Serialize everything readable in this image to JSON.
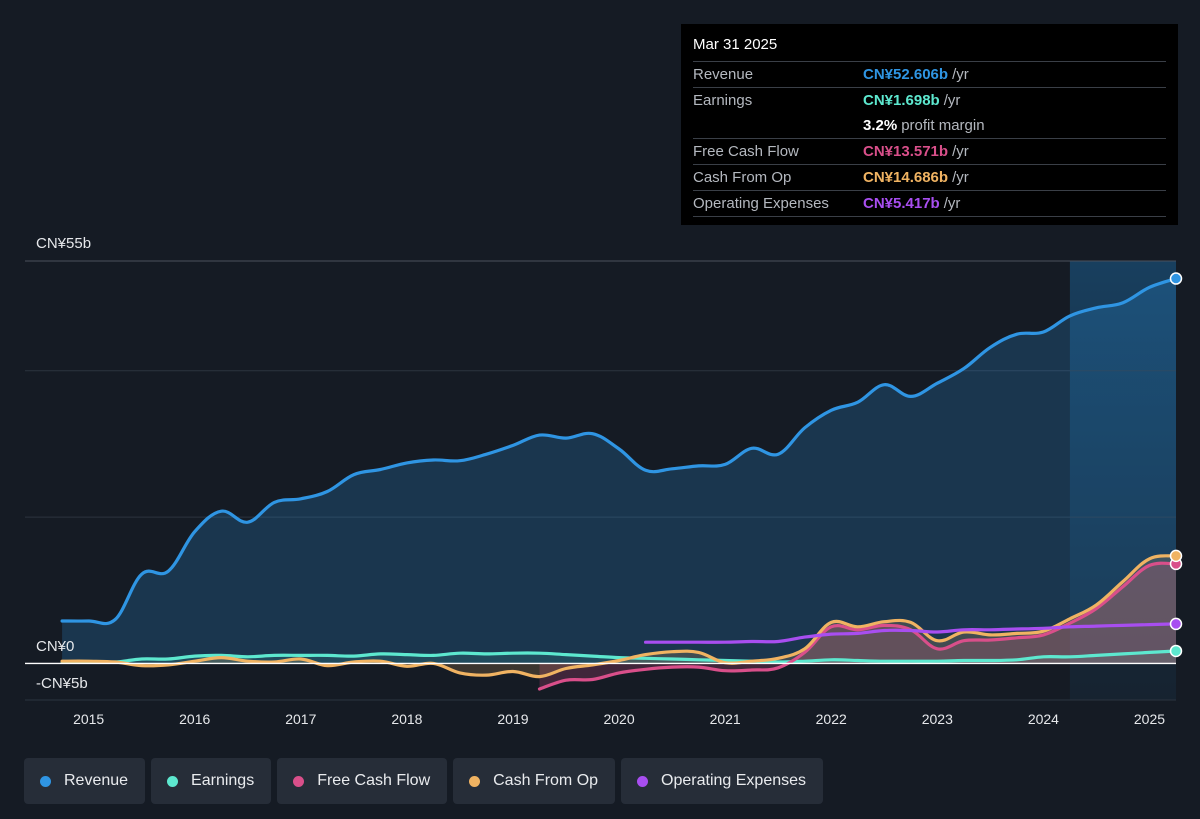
{
  "tooltip": {
    "date": "Mar 31 2025",
    "rows": [
      {
        "label": "Revenue",
        "value": "CN¥52.606b",
        "unit": "/yr",
        "color": "#2f95e3"
      },
      {
        "label": "Earnings",
        "value": "CN¥1.698b",
        "unit": "/yr",
        "color": "#5de8cf"
      },
      {
        "label": "",
        "value": "3.2%",
        "unit": "profit margin",
        "color": "#ffffff"
      },
      {
        "label": "Free Cash Flow",
        "value": "CN¥13.571b",
        "unit": "/yr",
        "color": "#d94f8a"
      },
      {
        "label": "Cash From Op",
        "value": "CN¥14.686b",
        "unit": "/yr",
        "color": "#f0b362"
      },
      {
        "label": "Operating Expenses",
        "value": "CN¥5.417b",
        "unit": "/yr",
        "color": "#a84ef0"
      }
    ]
  },
  "legend": [
    {
      "label": "Revenue",
      "color": "#2f95e3"
    },
    {
      "label": "Earnings",
      "color": "#5de8cf"
    },
    {
      "label": "Free Cash Flow",
      "color": "#d94f8a"
    },
    {
      "label": "Cash From Op",
      "color": "#f0b362"
    },
    {
      "label": "Operating Expenses",
      "color": "#a84ef0"
    }
  ],
  "chart_data": {
    "type": "line",
    "ylim": [
      -5,
      55
    ],
    "xlim": [
      2014.4,
      2025.25
    ],
    "y_tick_labels": [
      "CN¥55b",
      "CN¥0",
      "-CN¥5b"
    ],
    "x_tick_labels": [
      "2015",
      "2016",
      "2017",
      "2018",
      "2019",
      "2020",
      "2021",
      "2022",
      "2023",
      "2024",
      "2025"
    ],
    "forecast_start": 2024.25,
    "series": [
      {
        "name": "Revenue",
        "color": "#2f95e3",
        "area": true,
        "points": [
          [
            2014.75,
            5.8
          ],
          [
            2015.0,
            5.8
          ],
          [
            2015.25,
            6.0
          ],
          [
            2015.5,
            12.2
          ],
          [
            2015.75,
            12.6
          ],
          [
            2016.0,
            18.0
          ],
          [
            2016.25,
            20.8
          ],
          [
            2016.5,
            19.3
          ],
          [
            2016.75,
            22.0
          ],
          [
            2017.0,
            22.5
          ],
          [
            2017.25,
            23.5
          ],
          [
            2017.5,
            25.8
          ],
          [
            2017.75,
            26.5
          ],
          [
            2018.0,
            27.4
          ],
          [
            2018.25,
            27.8
          ],
          [
            2018.5,
            27.7
          ],
          [
            2018.75,
            28.6
          ],
          [
            2019.0,
            29.8
          ],
          [
            2019.25,
            31.2
          ],
          [
            2019.5,
            30.8
          ],
          [
            2019.75,
            31.4
          ],
          [
            2020.0,
            29.3
          ],
          [
            2020.25,
            26.4
          ],
          [
            2020.5,
            26.6
          ],
          [
            2020.75,
            27.0
          ],
          [
            2021.0,
            27.2
          ],
          [
            2021.25,
            29.4
          ],
          [
            2021.5,
            28.6
          ],
          [
            2021.75,
            32.2
          ],
          [
            2022.0,
            34.6
          ],
          [
            2022.25,
            35.7
          ],
          [
            2022.5,
            38.1
          ],
          [
            2022.75,
            36.5
          ],
          [
            2023.0,
            38.3
          ],
          [
            2023.25,
            40.3
          ],
          [
            2023.5,
            43.2
          ],
          [
            2023.75,
            45.0
          ],
          [
            2024.0,
            45.3
          ],
          [
            2024.25,
            47.5
          ],
          [
            2024.5,
            48.6
          ],
          [
            2024.75,
            49.3
          ],
          [
            2025.0,
            51.4
          ],
          [
            2025.25,
            52.6
          ]
        ]
      },
      {
        "name": "Earnings",
        "color": "#5de8cf",
        "area": true,
        "points": [
          [
            2014.75,
            0.2
          ],
          [
            2015.0,
            0.2
          ],
          [
            2015.25,
            0.2
          ],
          [
            2015.5,
            0.6
          ],
          [
            2015.75,
            0.6
          ],
          [
            2016.0,
            1.0
          ],
          [
            2016.25,
            1.1
          ],
          [
            2016.5,
            0.9
          ],
          [
            2016.75,
            1.1
          ],
          [
            2017.0,
            1.1
          ],
          [
            2017.25,
            1.1
          ],
          [
            2017.5,
            1.0
          ],
          [
            2017.75,
            1.3
          ],
          [
            2018.0,
            1.2
          ],
          [
            2018.25,
            1.1
          ],
          [
            2018.5,
            1.4
          ],
          [
            2018.75,
            1.3
          ],
          [
            2019.0,
            1.4
          ],
          [
            2019.25,
            1.4
          ],
          [
            2019.5,
            1.2
          ],
          [
            2019.75,
            1.0
          ],
          [
            2020.0,
            0.8
          ],
          [
            2020.25,
            0.7
          ],
          [
            2020.5,
            0.6
          ],
          [
            2020.75,
            0.5
          ],
          [
            2021.0,
            0.4
          ],
          [
            2021.25,
            0.3
          ],
          [
            2021.5,
            0.2
          ],
          [
            2021.75,
            0.3
          ],
          [
            2022.0,
            0.5
          ],
          [
            2022.25,
            0.4
          ],
          [
            2022.5,
            0.3
          ],
          [
            2022.75,
            0.3
          ],
          [
            2023.0,
            0.3
          ],
          [
            2023.25,
            0.4
          ],
          [
            2023.5,
            0.4
          ],
          [
            2023.75,
            0.5
          ],
          [
            2024.0,
            0.9
          ],
          [
            2024.25,
            0.9
          ],
          [
            2024.5,
            1.1
          ],
          [
            2024.75,
            1.3
          ],
          [
            2025.0,
            1.5
          ],
          [
            2025.25,
            1.7
          ]
        ]
      },
      {
        "name": "Free Cash Flow",
        "color": "#d94f8a",
        "area": true,
        "points": [
          [
            2019.25,
            -3.5
          ],
          [
            2019.5,
            -2.3
          ],
          [
            2019.75,
            -2.2
          ],
          [
            2020.0,
            -1.3
          ],
          [
            2020.25,
            -0.8
          ],
          [
            2020.5,
            -0.5
          ],
          [
            2020.75,
            -0.5
          ],
          [
            2021.0,
            -1.0
          ],
          [
            2021.25,
            -0.9
          ],
          [
            2021.5,
            -0.6
          ],
          [
            2021.75,
            1.5
          ],
          [
            2022.0,
            5.0
          ],
          [
            2022.25,
            4.6
          ],
          [
            2022.5,
            5.2
          ],
          [
            2022.75,
            4.6
          ],
          [
            2023.0,
            2.0
          ],
          [
            2023.25,
            3.1
          ],
          [
            2023.5,
            3.2
          ],
          [
            2023.75,
            3.5
          ],
          [
            2024.0,
            3.9
          ],
          [
            2024.25,
            5.5
          ],
          [
            2024.5,
            7.5
          ],
          [
            2024.75,
            10.5
          ],
          [
            2025.0,
            13.4
          ],
          [
            2025.25,
            13.6
          ]
        ]
      },
      {
        "name": "Cash From Op",
        "color": "#f0b362",
        "area": true,
        "points": [
          [
            2014.75,
            0.3
          ],
          [
            2015.0,
            0.3
          ],
          [
            2015.25,
            0.2
          ],
          [
            2015.5,
            -0.3
          ],
          [
            2015.75,
            -0.2
          ],
          [
            2016.0,
            0.3
          ],
          [
            2016.25,
            0.8
          ],
          [
            2016.5,
            0.3
          ],
          [
            2016.75,
            0.2
          ],
          [
            2017.0,
            0.6
          ],
          [
            2017.25,
            -0.3
          ],
          [
            2017.5,
            0.2
          ],
          [
            2017.75,
            0.3
          ],
          [
            2018.0,
            -0.4
          ],
          [
            2018.25,
            0.0
          ],
          [
            2018.5,
            -1.3
          ],
          [
            2018.75,
            -1.6
          ],
          [
            2019.0,
            -1.1
          ],
          [
            2019.25,
            -1.8
          ],
          [
            2019.5,
            -0.7
          ],
          [
            2019.75,
            -0.2
          ],
          [
            2020.0,
            0.4
          ],
          [
            2020.25,
            1.2
          ],
          [
            2020.5,
            1.6
          ],
          [
            2020.75,
            1.5
          ],
          [
            2021.0,
            0.1
          ],
          [
            2021.25,
            0.3
          ],
          [
            2021.5,
            0.7
          ],
          [
            2021.75,
            2.0
          ],
          [
            2022.0,
            5.6
          ],
          [
            2022.25,
            5.0
          ],
          [
            2022.5,
            5.7
          ],
          [
            2022.75,
            5.6
          ],
          [
            2023.0,
            3.1
          ],
          [
            2023.25,
            4.3
          ],
          [
            2023.5,
            3.9
          ],
          [
            2023.75,
            4.1
          ],
          [
            2024.0,
            4.4
          ],
          [
            2024.25,
            6.1
          ],
          [
            2024.5,
            8.0
          ],
          [
            2024.75,
            11.2
          ],
          [
            2025.0,
            14.3
          ],
          [
            2025.25,
            14.7
          ]
        ]
      },
      {
        "name": "Operating Expenses",
        "color": "#a84ef0",
        "area": false,
        "points": [
          [
            2020.25,
            2.9
          ],
          [
            2020.5,
            2.9
          ],
          [
            2020.75,
            2.9
          ],
          [
            2021.0,
            2.9
          ],
          [
            2021.25,
            3.0
          ],
          [
            2021.5,
            3.0
          ],
          [
            2021.75,
            3.6
          ],
          [
            2022.0,
            4.0
          ],
          [
            2022.25,
            4.1
          ],
          [
            2022.5,
            4.5
          ],
          [
            2022.75,
            4.5
          ],
          [
            2023.0,
            4.3
          ],
          [
            2023.25,
            4.6
          ],
          [
            2023.5,
            4.6
          ],
          [
            2023.75,
            4.7
          ],
          [
            2024.0,
            4.8
          ],
          [
            2024.25,
            5.0
          ],
          [
            2024.5,
            5.1
          ],
          [
            2024.75,
            5.2
          ],
          [
            2025.0,
            5.3
          ],
          [
            2025.25,
            5.4
          ]
        ]
      }
    ]
  }
}
